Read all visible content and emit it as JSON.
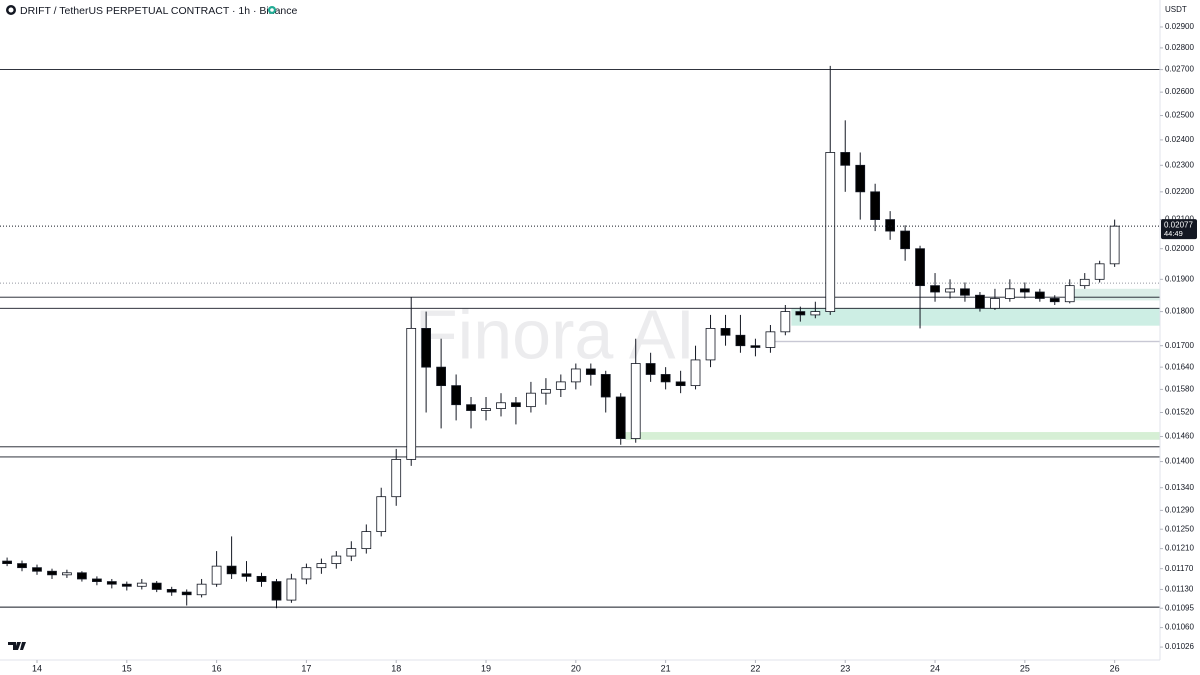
{
  "header": {
    "title": "DRIFT / TetherUS PERPETUAL CONTRACT · 1h · Binance",
    "currency": "USDT",
    "watermark": "Finora AI",
    "countdown": "44:49"
  },
  "chart_data": {
    "type": "candlestick",
    "log_scale": true,
    "up_color": "#ffffff",
    "down_color": "#000000",
    "xlim": [
      13.588,
      26.505
    ],
    "xticks": [
      14,
      15,
      16,
      17,
      18,
      19,
      20,
      21,
      22,
      23,
      24,
      25,
      26
    ],
    "ylim": [
      0.01004,
      0.03034
    ],
    "yticks": [
      {
        "value": 0.029,
        "label": "0.02900"
      },
      {
        "value": 0.028,
        "label": "0.02800"
      },
      {
        "value": 0.027,
        "label": "0.02700"
      },
      {
        "value": 0.026,
        "label": "0.02600"
      },
      {
        "value": 0.025,
        "label": "0.02500"
      },
      {
        "value": 0.024,
        "label": "0.02400"
      },
      {
        "value": 0.023,
        "label": "0.02300"
      },
      {
        "value": 0.022,
        "label": "0.02200"
      },
      {
        "value": 0.021,
        "label": "0.02100"
      },
      {
        "value": 0.02,
        "label": "0.02000"
      },
      {
        "value": 0.019,
        "label": "0.01900"
      },
      {
        "value": 0.018,
        "label": "0.01800"
      },
      {
        "value": 0.017,
        "label": "0.01700"
      },
      {
        "value": 0.0164,
        "label": "0.01640"
      },
      {
        "value": 0.0158,
        "label": "0.01580"
      },
      {
        "value": 0.0152,
        "label": "0.01520"
      },
      {
        "value": 0.0146,
        "label": "0.01460"
      },
      {
        "value": 0.014,
        "label": "0.01400"
      },
      {
        "value": 0.0134,
        "label": "0.01340"
      },
      {
        "value": 0.0129,
        "label": "0.01290"
      },
      {
        "value": 0.0125,
        "label": "0.01250"
      },
      {
        "value": 0.0121,
        "label": "0.01210"
      },
      {
        "value": 0.0117,
        "label": "0.01170"
      },
      {
        "value": 0.0113,
        "label": "0.01130"
      },
      {
        "value": 0.01095,
        "label": "0.01095"
      },
      {
        "value": 0.0106,
        "label": "0.01060"
      },
      {
        "value": 0.01026,
        "label": "0.01026"
      }
    ],
    "x": [
      13.667,
      13.833,
      14,
      14.167,
      14.333,
      14.5,
      14.667,
      14.833,
      15,
      15.167,
      15.333,
      15.5,
      15.667,
      15.833,
      16,
      16.167,
      16.333,
      16.5,
      16.667,
      16.833,
      17,
      17.167,
      17.333,
      17.5,
      17.667,
      17.833,
      18,
      18.167,
      18.333,
      18.5,
      18.667,
      18.833,
      19,
      19.167,
      19.333,
      19.5,
      19.667,
      19.833,
      20,
      20.167,
      20.333,
      20.5,
      20.667,
      20.833,
      21,
      21.167,
      21.333,
      21.5,
      21.667,
      21.833,
      22,
      22.167,
      22.333,
      22.5,
      22.667,
      22.833,
      23,
      23.167,
      23.333,
      23.5,
      23.667,
      23.833,
      24,
      24.167,
      24.333,
      24.5,
      24.667,
      24.833,
      25,
      25.167,
      25.333,
      25.5,
      25.667,
      25.833,
      26
    ],
    "open": [
      0.01185,
      0.0118,
      0.01172,
      0.01165,
      0.01158,
      0.01162,
      0.0115,
      0.01145,
      0.0114,
      0.01136,
      0.01142,
      0.0113,
      0.01125,
      0.0112,
      0.0114,
      0.01175,
      0.0116,
      0.01155,
      0.01145,
      0.0111,
      0.0115,
      0.01172,
      0.0118,
      0.01195,
      0.0121,
      0.01245,
      0.0132,
      0.01405,
      0.0175,
      0.0164,
      0.0159,
      0.0154,
      0.01525,
      0.0153,
      0.01545,
      0.01535,
      0.0157,
      0.0158,
      0.016,
      0.01635,
      0.0162,
      0.0156,
      0.01455,
      0.0165,
      0.0162,
      0.016,
      0.0159,
      0.0166,
      0.0175,
      0.0173,
      0.017,
      0.01695,
      0.0174,
      0.018,
      0.0179,
      0.018,
      0.0235,
      0.023,
      0.022,
      0.021,
      0.0206,
      0.02,
      0.0188,
      0.0186,
      0.0187,
      0.0185,
      0.0181,
      0.0184,
      0.0187,
      0.0186,
      0.0184,
      0.0183,
      0.0188,
      0.019,
      0.0195
    ],
    "high": [
      0.01192,
      0.01186,
      0.01178,
      0.0117,
      0.01168,
      0.01165,
      0.01155,
      0.0115,
      0.01145,
      0.0115,
      0.01146,
      0.01135,
      0.0113,
      0.0115,
      0.01205,
      0.01235,
      0.01185,
      0.01162,
      0.0115,
      0.0116,
      0.0118,
      0.0119,
      0.01205,
      0.01225,
      0.0126,
      0.0134,
      0.0143,
      0.01844,
      0.018,
      0.0172,
      0.0162,
      0.0156,
      0.0156,
      0.0157,
      0.0156,
      0.016,
      0.0161,
      0.0162,
      0.0165,
      0.0165,
      0.0163,
      0.0157,
      0.0172,
      0.0168,
      0.0164,
      0.0163,
      0.017,
      0.0179,
      0.0179,
      0.0179,
      0.0172,
      0.0176,
      0.0182,
      0.01815,
      0.0183,
      0.02717,
      0.0248,
      0.0235,
      0.0223,
      0.0213,
      0.0208,
      0.0201,
      0.0192,
      0.019,
      0.0189,
      0.0186,
      0.0187,
      0.019,
      0.0189,
      0.0187,
      0.0185,
      0.019,
      0.0192,
      0.0196,
      0.021
    ],
    "low": [
      0.01175,
      0.01165,
      0.01158,
      0.0115,
      0.01152,
      0.01145,
      0.01138,
      0.01132,
      0.01128,
      0.0113,
      0.01125,
      0.01118,
      0.011,
      0.01115,
      0.01135,
      0.0115,
      0.01145,
      0.01135,
      0.01095,
      0.01105,
      0.0114,
      0.0116,
      0.0117,
      0.01185,
      0.012,
      0.01235,
      0.013,
      0.0139,
      0.0152,
      0.0148,
      0.015,
      0.0148,
      0.015,
      0.0151,
      0.0149,
      0.0152,
      0.0154,
      0.0156,
      0.0158,
      0.0159,
      0.0152,
      0.0144,
      0.01445,
      0.016,
      0.0158,
      0.0157,
      0.0158,
      0.0164,
      0.017,
      0.0168,
      0.0167,
      0.0168,
      0.0173,
      0.0177,
      0.0178,
      0.0179,
      0.022,
      0.021,
      0.0206,
      0.0203,
      0.0196,
      0.0175,
      0.0183,
      0.0184,
      0.0183,
      0.018,
      0.01805,
      0.0183,
      0.0184,
      0.0183,
      0.0182,
      0.01825,
      0.0187,
      0.0189,
      0.0194
    ],
    "close": [
      0.0118,
      0.01172,
      0.01165,
      0.01158,
      0.01162,
      0.0115,
      0.01145,
      0.0114,
      0.01136,
      0.01142,
      0.0113,
      0.01125,
      0.0112,
      0.0114,
      0.01175,
      0.0116,
      0.01155,
      0.01145,
      0.0111,
      0.0115,
      0.01172,
      0.0118,
      0.01195,
      0.0121,
      0.01245,
      0.0132,
      0.01405,
      0.0175,
      0.0164,
      0.0159,
      0.0154,
      0.01525,
      0.0153,
      0.01545,
      0.01535,
      0.0157,
      0.0158,
      0.016,
      0.01635,
      0.0162,
      0.0156,
      0.01455,
      0.0165,
      0.0162,
      0.016,
      0.0159,
      0.0166,
      0.0175,
      0.0173,
      0.017,
      0.01695,
      0.0174,
      0.018,
      0.0179,
      0.018,
      0.0235,
      0.023,
      0.022,
      0.021,
      0.0206,
      0.02,
      0.0188,
      0.0186,
      0.0187,
      0.0185,
      0.0181,
      0.0184,
      0.0187,
      0.0186,
      0.0184,
      0.0183,
      0.0188,
      0.019,
      0.0195,
      0.02077
    ],
    "last_price": 0.02077,
    "levels": [
      0.027,
      0.01844,
      0.0181,
      0.01435,
      0.01411,
      0.01097
    ],
    "dotted_levels": [
      0.01888
    ],
    "zones": [
      {
        "x": [
          22.4,
          26.505
        ],
        "y": [
          0.01758,
          0.0181
        ],
        "color": "#cdeee4"
      },
      {
        "x": [
          20.55,
          26.505
        ],
        "y": [
          0.01452,
          0.01471
        ],
        "color": "#d6efd5"
      },
      {
        "x": [
          25.45,
          26.505
        ],
        "y": [
          0.01834,
          0.0187
        ],
        "color": "#dbeee8"
      },
      {
        "x": [
          22.15,
          26.505
        ],
        "y": [
          0.0171,
          0.01714
        ],
        "color": "#c8c8d4"
      }
    ]
  }
}
